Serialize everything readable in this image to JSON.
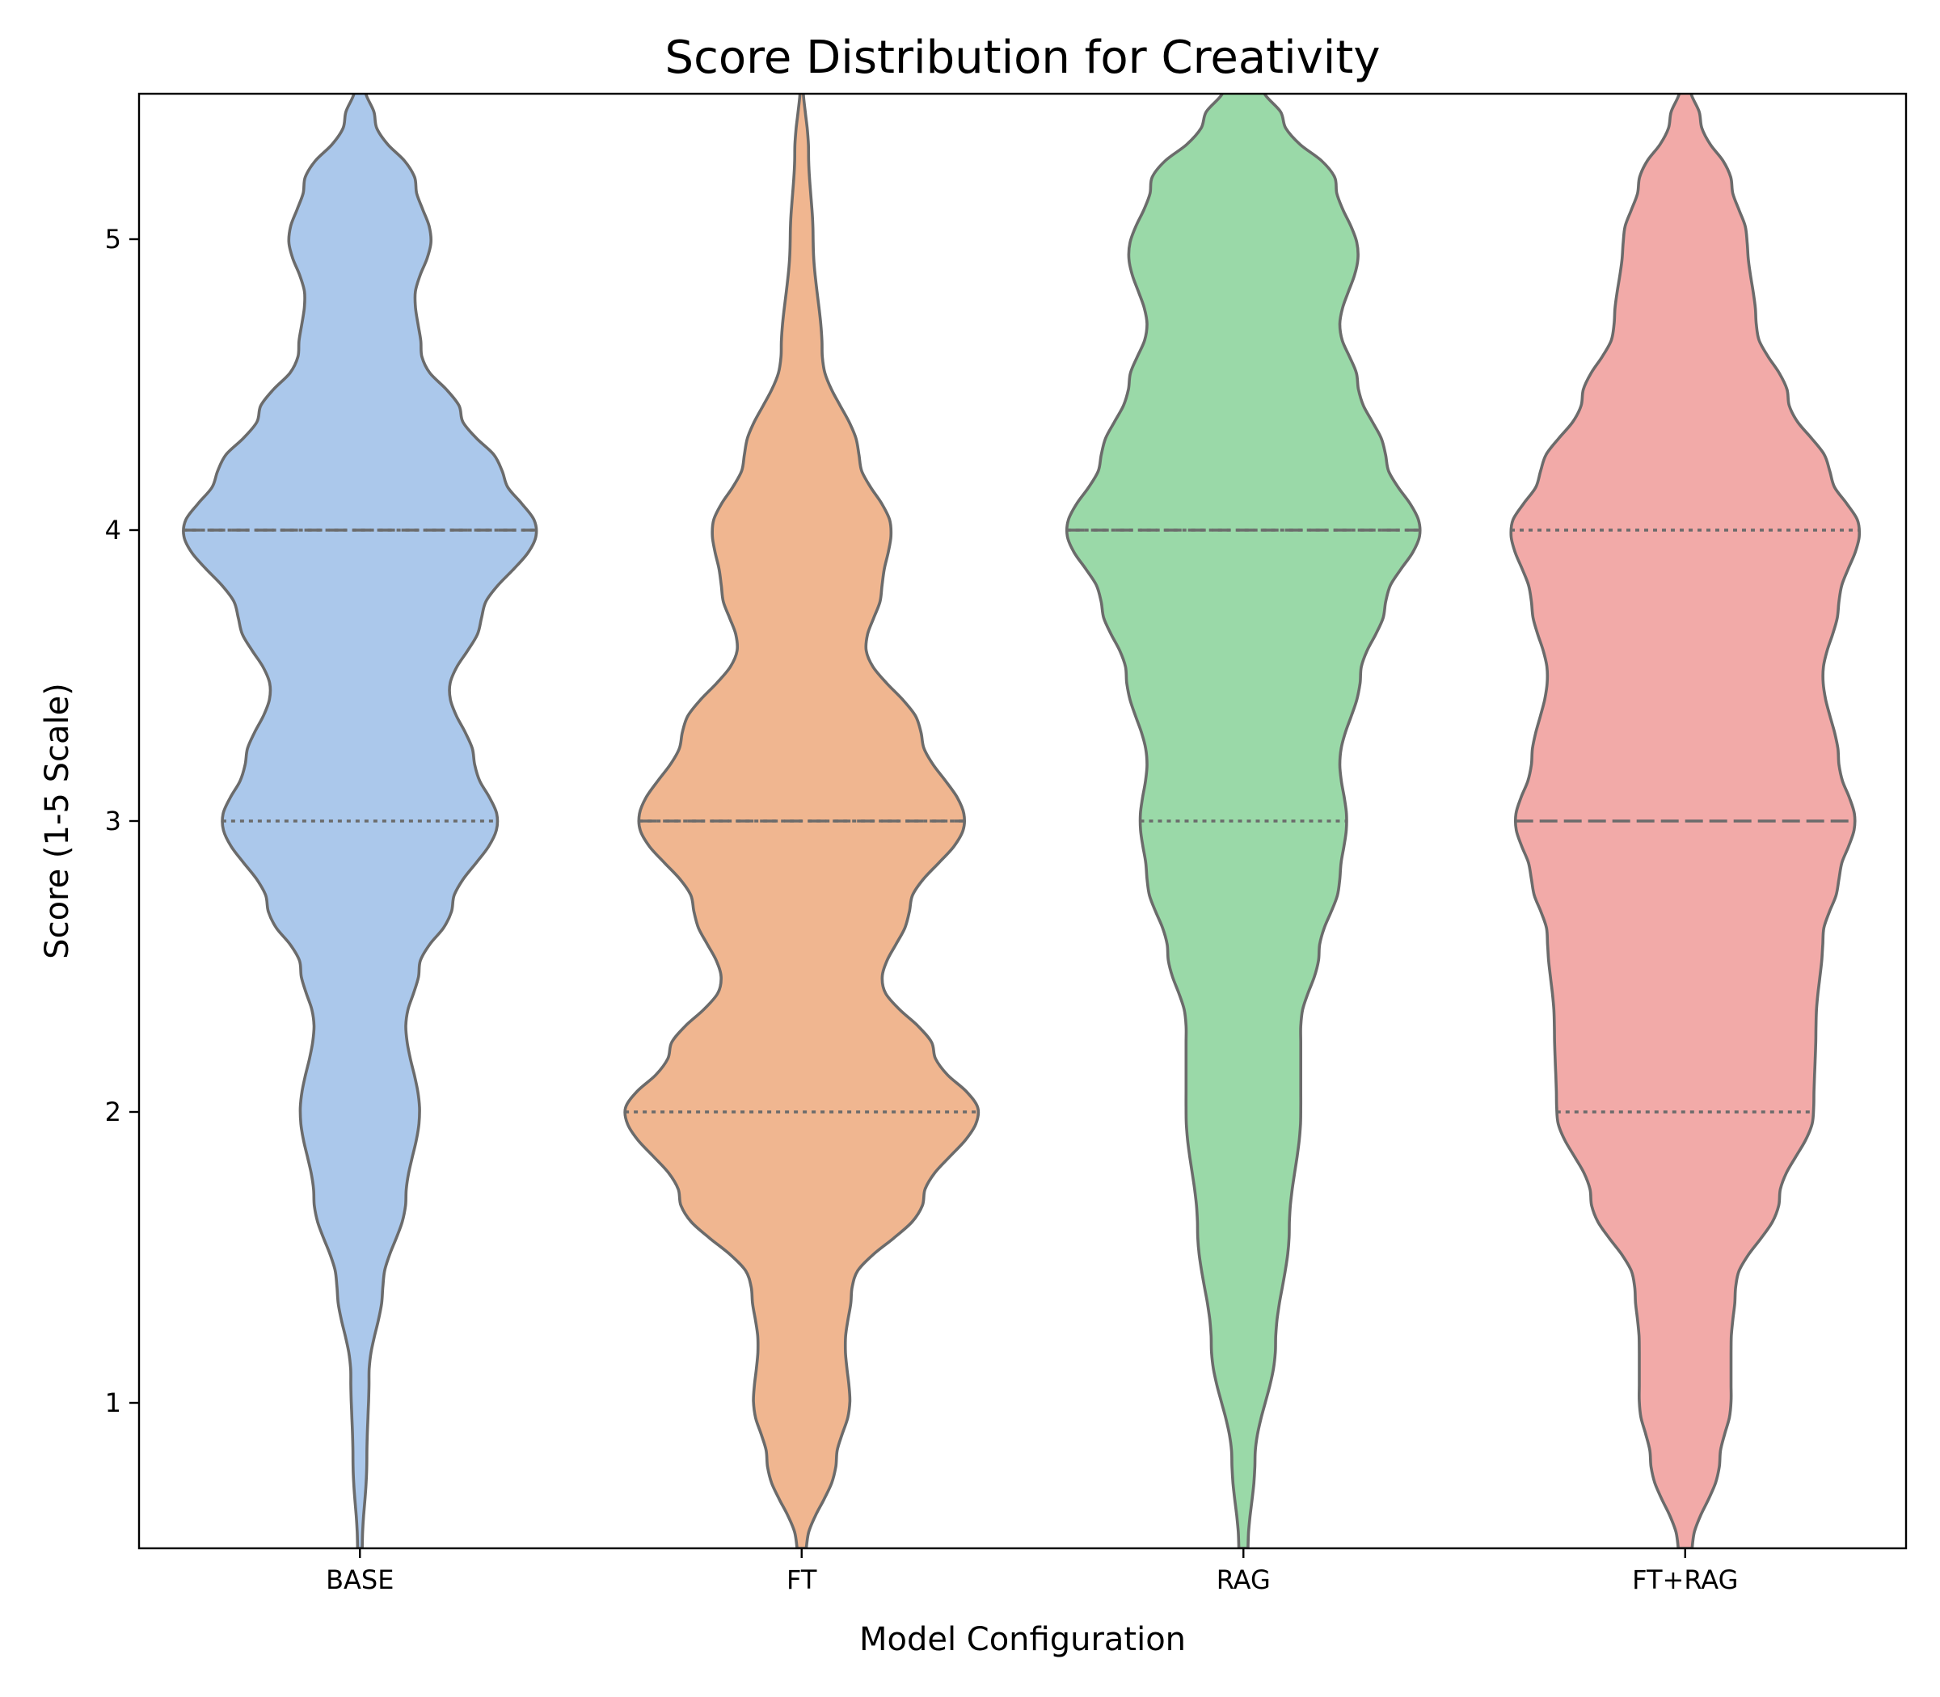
{
  "chart_data": {
    "type": "violin",
    "title": "Score Distribution for Creativity",
    "xlabel": "Model Configuration",
    "ylabel": "Score (1-5 Scale)",
    "ylim": [
      0.5,
      5.5
    ],
    "yticks": [
      1,
      2,
      3,
      4,
      5
    ],
    "grid": false,
    "categories": [
      "BASE",
      "FT",
      "RAG",
      "FT+RAG"
    ],
    "outline_color": "#6b6b6b",
    "series": [
      {
        "category": "BASE",
        "color": "#abc8eb",
        "quartiles": {
          "q1": 3.0,
          "median": 4.0,
          "q3": 4.0
        },
        "density": [
          [
            0.5,
            0.01
          ],
          [
            0.8,
            0.03
          ],
          [
            1.1,
            0.04
          ],
          [
            1.4,
            0.1
          ],
          [
            1.7,
            0.2
          ],
          [
            2.0,
            0.26
          ],
          [
            2.3,
            0.2
          ],
          [
            2.5,
            0.26
          ],
          [
            2.7,
            0.4
          ],
          [
            3.0,
            0.6
          ],
          [
            3.2,
            0.5
          ],
          [
            3.45,
            0.39
          ],
          [
            3.7,
            0.53
          ],
          [
            4.0,
            0.77
          ],
          [
            4.2,
            0.62
          ],
          [
            4.4,
            0.44
          ],
          [
            4.6,
            0.27
          ],
          [
            4.8,
            0.24
          ],
          [
            5.0,
            0.31
          ],
          [
            5.2,
            0.24
          ],
          [
            5.4,
            0.07
          ],
          [
            5.55,
            0.01
          ]
        ]
      },
      {
        "category": "FT",
        "color": "#f0b690",
        "quartiles": {
          "q1": 2.0,
          "median": 3.0,
          "q3": 3.0
        },
        "density": [
          [
            0.5,
            0.02
          ],
          [
            0.8,
            0.15
          ],
          [
            1.0,
            0.21
          ],
          [
            1.2,
            0.19
          ],
          [
            1.4,
            0.22
          ],
          [
            1.7,
            0.53
          ],
          [
            2.0,
            0.77
          ],
          [
            2.2,
            0.58
          ],
          [
            2.45,
            0.35
          ],
          [
            2.7,
            0.47
          ],
          [
            3.0,
            0.71
          ],
          [
            3.3,
            0.52
          ],
          [
            3.6,
            0.28
          ],
          [
            3.8,
            0.35
          ],
          [
            4.0,
            0.39
          ],
          [
            4.25,
            0.25
          ],
          [
            4.6,
            0.09
          ],
          [
            5.0,
            0.05
          ],
          [
            5.3,
            0.03
          ],
          [
            5.55,
            0.005
          ]
        ]
      },
      {
        "category": "RAG",
        "color": "#9ad9a8",
        "quartiles": {
          "q1": 3.0,
          "median": 4.0,
          "q3": 4.0
        },
        "density": [
          [
            0.5,
            0.02
          ],
          [
            0.8,
            0.05
          ],
          [
            1.2,
            0.14
          ],
          [
            1.6,
            0.2
          ],
          [
            2.0,
            0.25
          ],
          [
            2.3,
            0.25
          ],
          [
            2.55,
            0.33
          ],
          [
            2.8,
            0.42
          ],
          [
            3.0,
            0.45
          ],
          [
            3.2,
            0.42
          ],
          [
            3.5,
            0.51
          ],
          [
            3.75,
            0.62
          ],
          [
            4.0,
            0.77
          ],
          [
            4.25,
            0.62
          ],
          [
            4.5,
            0.5
          ],
          [
            4.7,
            0.42
          ],
          [
            4.95,
            0.5
          ],
          [
            5.2,
            0.4
          ],
          [
            5.4,
            0.18
          ],
          [
            5.55,
            0.06
          ]
        ]
      },
      {
        "category": "FT+RAG",
        "color": "#f2aaa8",
        "quartiles": {
          "q1": 2.0,
          "median": 3.0,
          "q3": 4.0
        },
        "density": [
          [
            0.5,
            0.03
          ],
          [
            0.8,
            0.15
          ],
          [
            1.0,
            0.2
          ],
          [
            1.2,
            0.2
          ],
          [
            1.4,
            0.22
          ],
          [
            1.7,
            0.41
          ],
          [
            2.0,
            0.56
          ],
          [
            2.3,
            0.57
          ],
          [
            2.6,
            0.6
          ],
          [
            2.8,
            0.67
          ],
          [
            3.0,
            0.74
          ],
          [
            3.2,
            0.67
          ],
          [
            3.5,
            0.6
          ],
          [
            3.75,
            0.67
          ],
          [
            4.0,
            0.76
          ],
          [
            4.2,
            0.63
          ],
          [
            4.45,
            0.45
          ],
          [
            4.7,
            0.31
          ],
          [
            5.0,
            0.27
          ],
          [
            5.2,
            0.2
          ],
          [
            5.4,
            0.07
          ],
          [
            5.55,
            0.01
          ]
        ]
      }
    ]
  }
}
